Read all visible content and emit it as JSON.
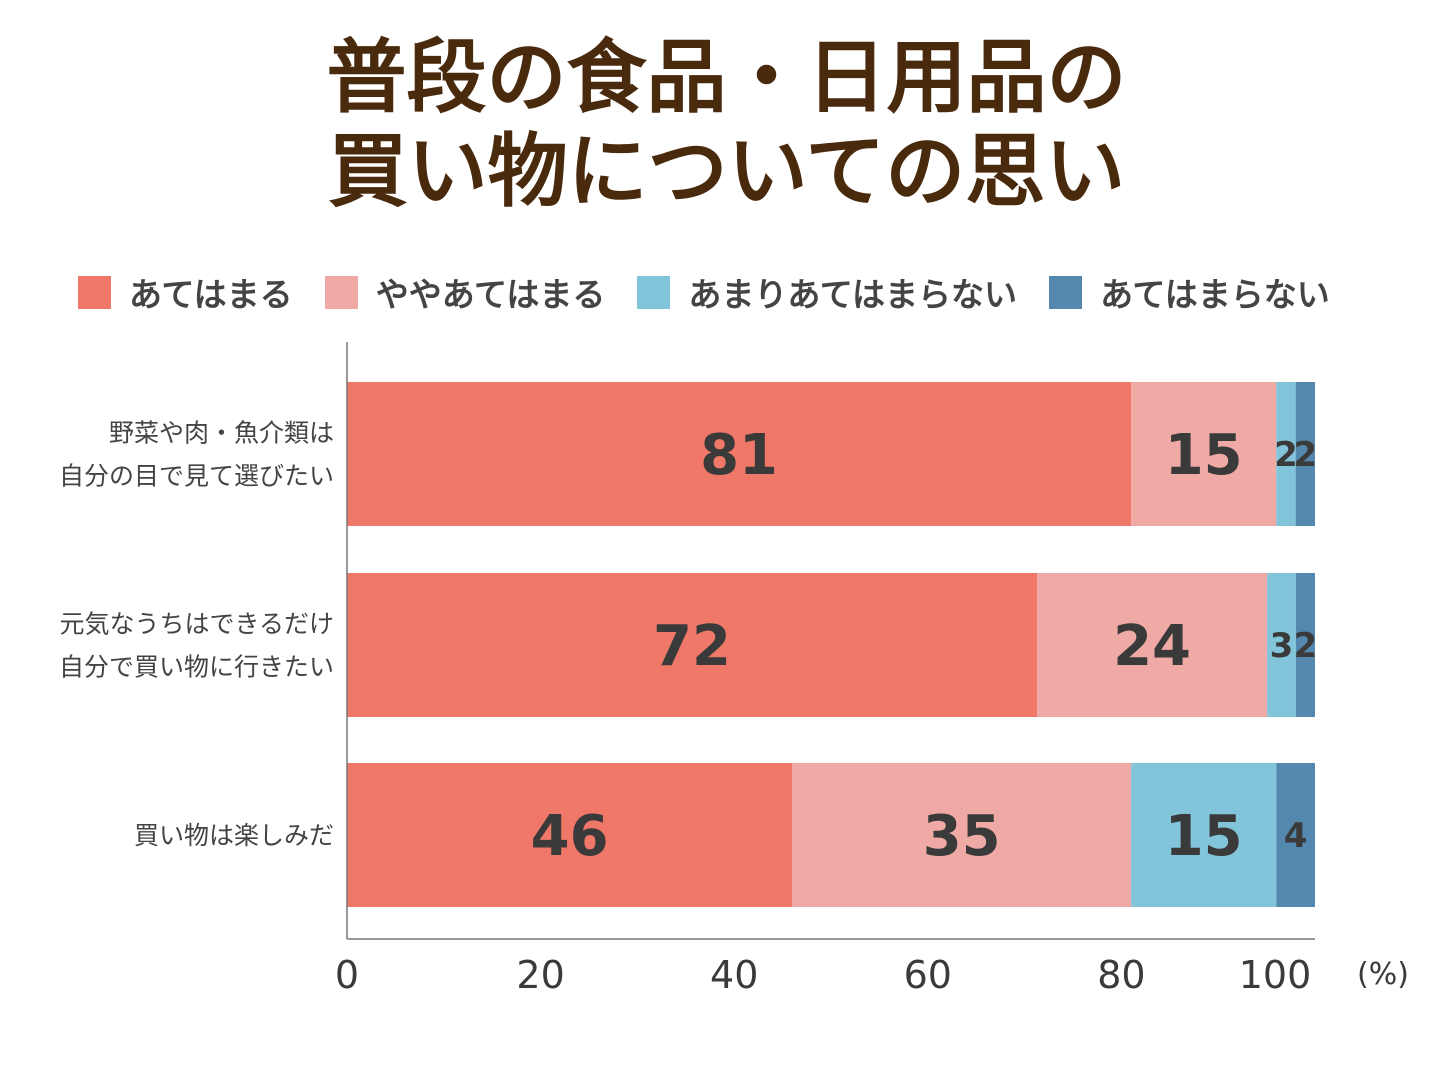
{
  "chart_data": {
    "type": "bar",
    "orientation": "horizontal",
    "stacked": true,
    "title": "普段の食品・日用品の\n買い物についての思い",
    "title_lines": [
      "普段の食品・日用品の",
      "買い物についての思い"
    ],
    "categories": [
      [
        "野菜や肉・魚介類は",
        "自分の目で見て選びたい"
      ],
      [
        "元気なうちはできるだけ",
        "自分で買い物に行きたい"
      ],
      [
        "買い物は楽しみだ"
      ]
    ],
    "series": [
      {
        "name": "あてはまる",
        "color": "#f07868",
        "values": [
          81,
          72,
          46
        ]
      },
      {
        "name": "ややあてはまる",
        "color": "#f0aaa6",
        "values": [
          15,
          24,
          35
        ]
      },
      {
        "name": "あまりあてはまらない",
        "color": "#82c4da",
        "values": [
          2,
          3,
          15
        ]
      },
      {
        "name": "あてはまらない",
        "color": "#5588ae",
        "values": [
          2,
          2,
          4
        ]
      }
    ],
    "xlim": [
      0,
      100
    ],
    "xticks": [
      "0",
      "20",
      "40",
      "60",
      "80",
      "100"
    ],
    "xunit": "(%)",
    "legend_position": "top",
    "grid": false
  }
}
